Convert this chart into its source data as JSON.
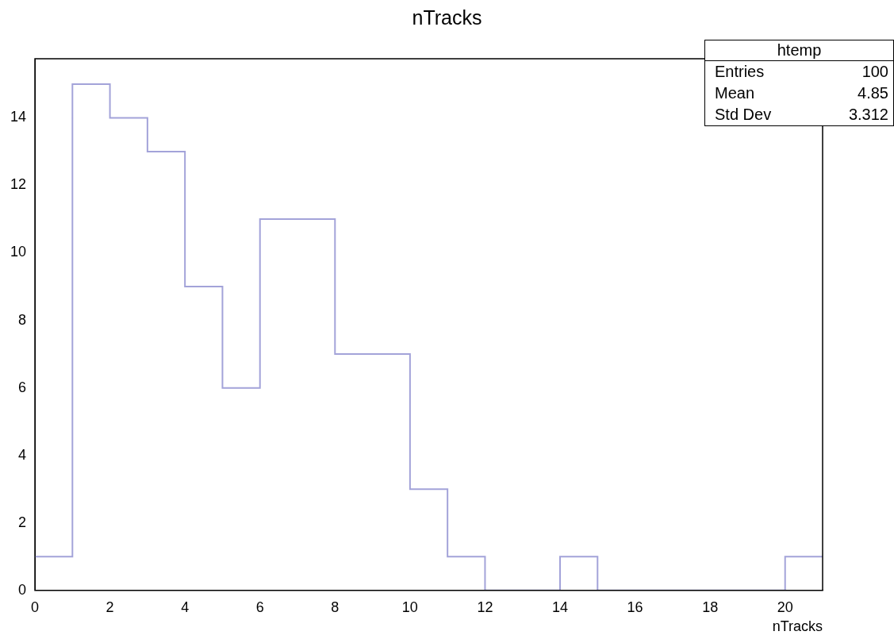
{
  "chart_data": {
    "type": "histogram",
    "title": "nTracks",
    "xlabel": "nTracks",
    "bins": [
      0,
      1,
      2,
      3,
      4,
      5,
      6,
      7,
      8,
      9,
      10,
      11,
      12,
      13,
      14,
      15,
      16,
      17,
      18,
      19,
      20,
      21
    ],
    "values": [
      1,
      15,
      14,
      13,
      9,
      6,
      11,
      11,
      7,
      7,
      3,
      1,
      0,
      0,
      1,
      0,
      0,
      0,
      0,
      0,
      1
    ],
    "color": "#a3a3d9",
    "xlim": [
      0,
      21
    ],
    "xticks": [
      0,
      2,
      4,
      6,
      8,
      10,
      12,
      14,
      16,
      18,
      20
    ],
    "ylim": [
      0,
      15.75
    ],
    "yticks": [
      0,
      2,
      4,
      6,
      8,
      10,
      12,
      14
    ],
    "grid": false,
    "legend": false,
    "annotations": [
      "htemp",
      "Entries 100",
      "Mean 4.85",
      "Std Dev 3.312"
    ]
  }
}
